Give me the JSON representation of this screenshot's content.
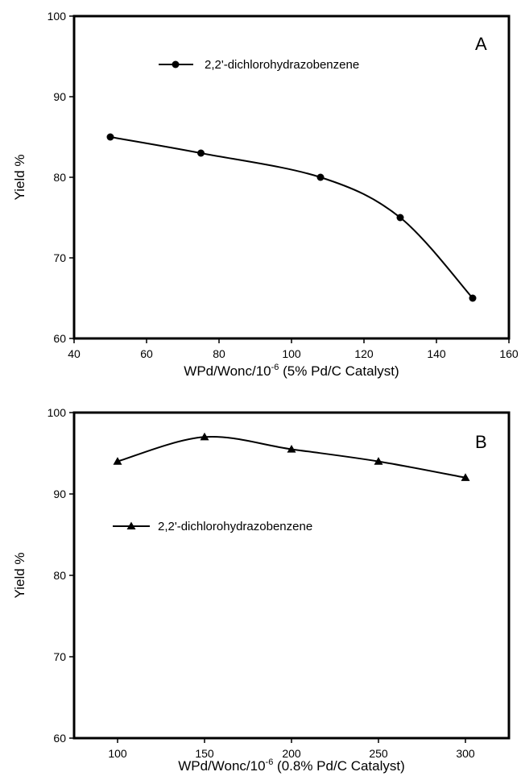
{
  "chart_data": [
    {
      "type": "line",
      "panel_label": "A",
      "xlabel_main": "WPd/Wonc/10",
      "xlabel_sup": "-6",
      "xlabel_tail": " (5% Pd/C Catalyst)",
      "ylabel": "Yield %",
      "xlim": [
        40,
        160
      ],
      "ylim": [
        60,
        100
      ],
      "x_ticks": [
        40,
        60,
        80,
        100,
        120,
        140,
        160
      ],
      "y_ticks": [
        60,
        70,
        80,
        90,
        100
      ],
      "grid": false,
      "legend_position": "top-left",
      "series": [
        {
          "name": "2,2'-dichlorohydrazobenzene",
          "marker": "circle",
          "x": [
            50,
            75,
            108,
            130,
            150
          ],
          "y": [
            85,
            83,
            80,
            75,
            65
          ]
        }
      ]
    },
    {
      "type": "line",
      "panel_label": "B",
      "xlabel_main": "WPd/Wonc/10",
      "xlabel_sup": "-6",
      "xlabel_tail": " (0.8% Pd/C Catalyst)",
      "ylabel": "Yield %",
      "xlim": [
        75,
        325
      ],
      "ylim": [
        60,
        100
      ],
      "x_ticks": [
        100,
        150,
        200,
        250,
        300
      ],
      "y_ticks": [
        60,
        70,
        80,
        90,
        100
      ],
      "grid": false,
      "legend_position": "center-left",
      "series": [
        {
          "name": "2,2'-dichlorohydrazobenzene",
          "marker": "triangle",
          "x": [
            100,
            150,
            200,
            250,
            300
          ],
          "y": [
            94,
            97,
            95.5,
            94,
            92
          ]
        }
      ]
    }
  ]
}
